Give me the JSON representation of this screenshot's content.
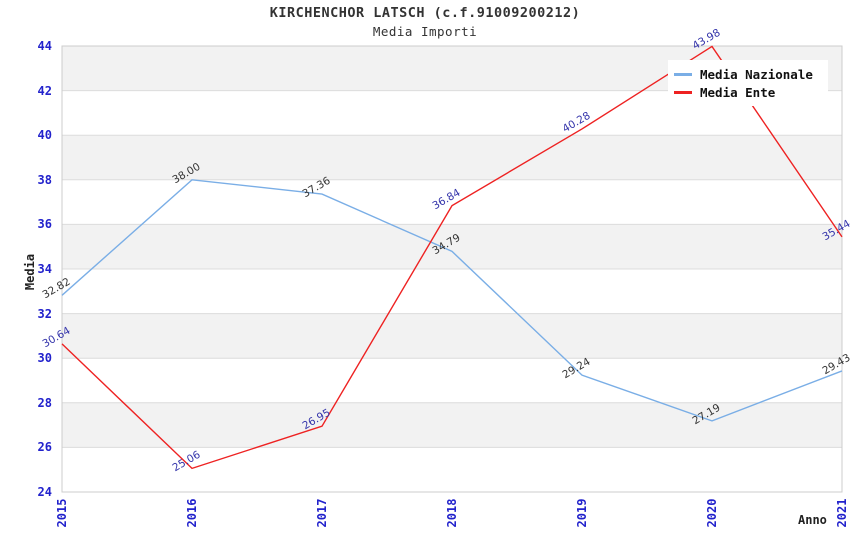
{
  "header": {
    "title": "KIRCHENCHOR LATSCH (c.f.91009200212)",
    "subtitle": "Media Importi"
  },
  "colors": {
    "background": "#ffffff",
    "band": "#f2f2f2",
    "grid": "#dcdcdc",
    "border": "#cccccc",
    "tick_label": "#2222cc",
    "title_text": "#333333",
    "nazionale_line": "#7aaee6",
    "ente_line": "#ee2222",
    "nazionale_point_label": "#333333",
    "ente_point_label": "#3333aa"
  },
  "chart_data": {
    "type": "line",
    "title": "KIRCHENCHOR LATSCH (c.f.91009200212)",
    "subtitle": "Media Importi",
    "xlabel": "Anno",
    "ylabel": "Media",
    "categories": [
      "2015",
      "2016",
      "2017",
      "2018",
      "2019",
      "2020",
      "2021"
    ],
    "series": [
      {
        "name": "Media Nazionale",
        "color": "#7aaee6",
        "label_color": "#333333",
        "values": [
          32.82,
          38.0,
          37.36,
          34.79,
          29.24,
          27.19,
          29.43
        ]
      },
      {
        "name": "Media Ente",
        "color": "#ee2222",
        "label_color": "#3333aa",
        "values": [
          30.64,
          25.06,
          26.95,
          36.84,
          40.28,
          43.98,
          35.44
        ]
      }
    ],
    "ylim": [
      24,
      44
    ],
    "ytick_step": 2,
    "grid": true,
    "band_fill_lowers": [
      26,
      30,
      34,
      38,
      42
    ],
    "legend_position": "top-right",
    "point_labels_decimals": 2
  }
}
